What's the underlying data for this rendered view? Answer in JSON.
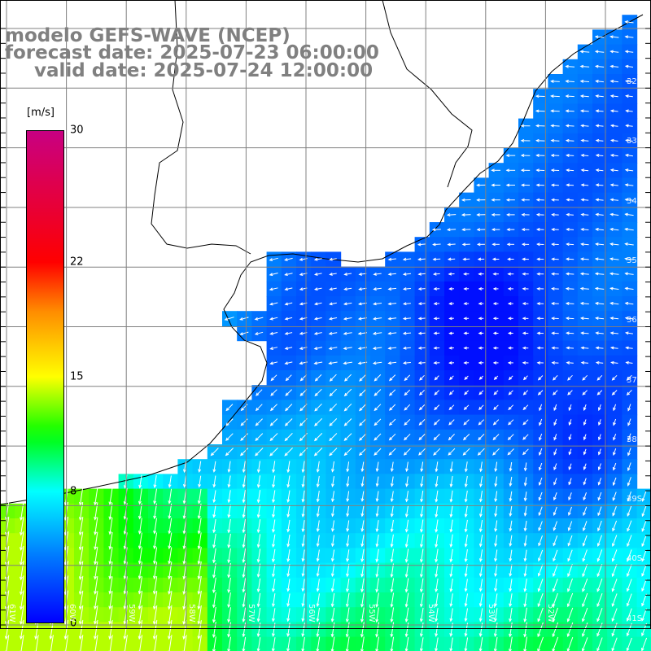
{
  "title": {
    "line1": "modelo GEFS-WAVE (NCEP)",
    "line2": "forecast date: 2025-07-23 06:00:00",
    "line3": "valid date: 2025-07-24 12:00:00"
  },
  "legend": {
    "units": "[m/s]",
    "ticks": [
      {
        "label": "30",
        "value": 30
      },
      {
        "label": "22",
        "value": 22
      },
      {
        "label": "15",
        "value": 15
      },
      {
        "label": "8",
        "value": 8
      },
      {
        "label": "0",
        "value": 0
      }
    ],
    "colors": [
      "#0000ff",
      "#00c8ff",
      "#00ffff",
      "#00ff00",
      "#ffff00",
      "#ff8000",
      "#ff0000",
      "#c80080"
    ]
  },
  "map": {
    "lat_labels": [
      "32S",
      "33S",
      "34S",
      "35S",
      "36S",
      "37S",
      "38S",
      "39S",
      "40S",
      "41S"
    ],
    "lon_labels": [
      "61W",
      "60W",
      "59W",
      "58W",
      "57W",
      "56W",
      "55W",
      "54W",
      "53W",
      "52W"
    ],
    "field": "wind speed",
    "ocean_color": "#0a7ff2",
    "land_color": "#ffffff",
    "grid_color": "#808080",
    "arrow_color": "#ffffff"
  }
}
